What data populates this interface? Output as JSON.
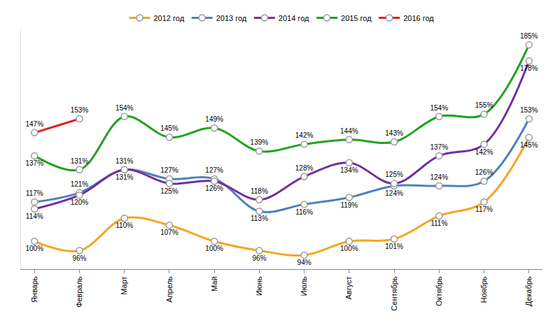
{
  "chart_data": {
    "type": "line",
    "categories": [
      "Январь",
      "Февраль",
      "Март",
      "Апрель",
      "Май",
      "Июнь",
      "Июль",
      "Август",
      "Сентябрь",
      "Октябрь",
      "Ноябрь",
      "Декабрь"
    ],
    "series": [
      {
        "name": "2012 год",
        "color": "#F4A524",
        "values": [
          100,
          96,
          110,
          107,
          100,
          96,
          94,
          100,
          101,
          111,
          117,
          145
        ],
        "value_labels": [
          "100%",
          "96%",
          "110%",
          "107%",
          "100%",
          "96%",
          "94%",
          "100%",
          "101%",
          "111%",
          "117%",
          "145%"
        ]
      },
      {
        "name": "2013 год",
        "color": "#4F81BD",
        "values": [
          117,
          121,
          131,
          127,
          127,
          113,
          116,
          119,
          124,
          124,
          126,
          153
        ],
        "value_labels": [
          "117%",
          "121%",
          "131%",
          "127%",
          "127%",
          "113%",
          "116%",
          "119%",
          "124%",
          "124%",
          "126%",
          "153%"
        ]
      },
      {
        "name": "2014 год",
        "color": "#7030A0",
        "values": [
          114,
          120,
          131,
          125,
          126,
          118,
          128,
          134,
          125,
          137,
          142,
          178
        ],
        "value_labels": [
          "114%",
          "120%",
          "131%",
          "125%",
          "126%",
          "118%",
          "128%",
          "134%",
          "125%",
          "137%",
          "142%",
          "178%"
        ]
      },
      {
        "name": "2015 год",
        "color": "#1FA31F",
        "values": [
          137,
          131,
          154,
          145,
          149,
          139,
          142,
          144,
          143,
          154,
          155,
          185
        ],
        "value_labels": [
          "137%",
          "131%",
          "154%",
          "145%",
          "149%",
          "139%",
          "142%",
          "144%",
          "143%",
          "154%",
          "155%",
          "185%"
        ]
      },
      {
        "name": "2016 год",
        "color": "#E02020",
        "values": [
          147,
          153,
          null,
          null,
          null,
          null,
          null,
          null,
          null,
          null,
          null,
          null
        ],
        "value_labels": [
          "147%",
          "153%",
          null,
          null,
          null,
          null,
          null,
          null,
          null,
          null,
          null,
          null
        ]
      }
    ],
    "ylim": [
      88,
      192
    ],
    "tick_labels": "x",
    "data_labels": true,
    "legend": "top",
    "marker": "circle",
    "line_style": "spline",
    "grid": false
  }
}
